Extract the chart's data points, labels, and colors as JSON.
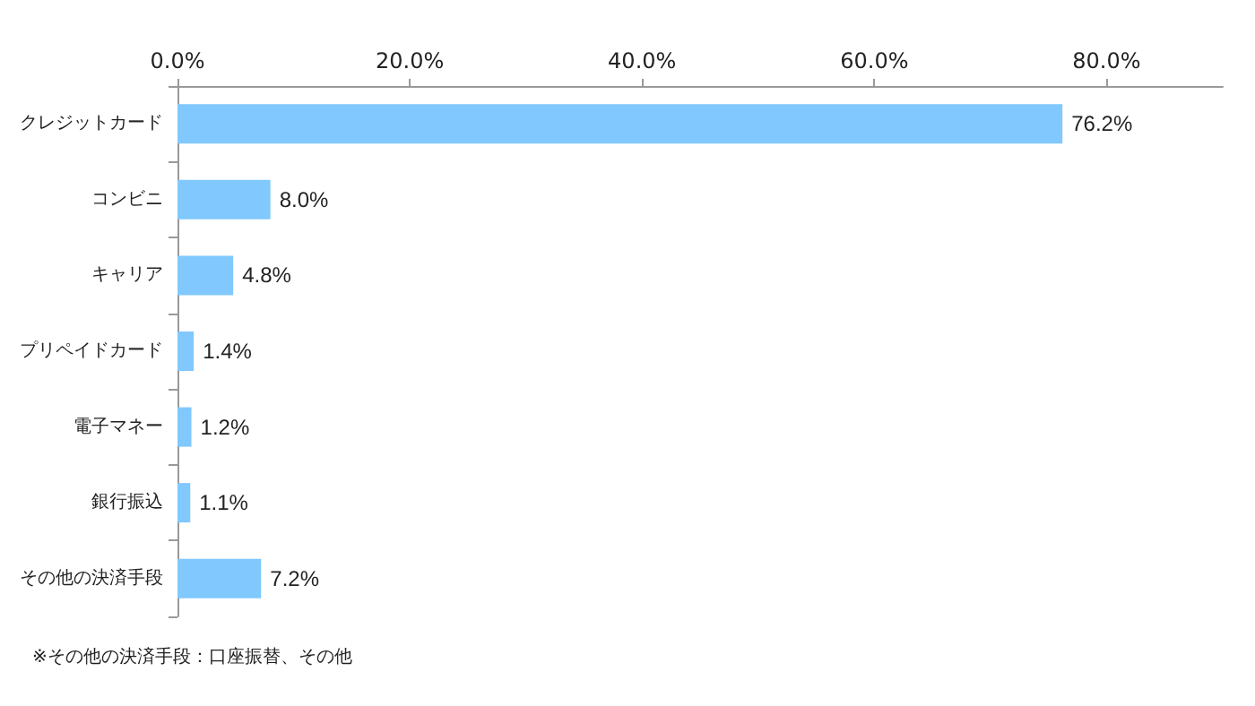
{
  "chart_data": {
    "type": "bar",
    "orientation": "horizontal",
    "categories": [
      "クレジットカード",
      "コンビニ",
      "キャリア",
      "プリペイドカード",
      "電子マネー",
      "銀行振込",
      "その他の決済手段"
    ],
    "values": [
      76.2,
      8.0,
      4.8,
      1.4,
      1.2,
      1.1,
      7.2
    ],
    "value_labels": [
      "76.2%",
      "8.0%",
      "4.8%",
      "1.4%",
      "1.2%",
      "1.1%",
      "7.2%"
    ],
    "color": "#80c8fe",
    "xlim": [
      0,
      90
    ],
    "xticks": [
      {
        "value": 0,
        "label": "0.0%"
      },
      {
        "value": 20,
        "label": "20.0%"
      },
      {
        "value": 40,
        "label": "40.0%"
      },
      {
        "value": 60,
        "label": "60.0%"
      },
      {
        "value": 80,
        "label": "80.0%"
      }
    ],
    "grid": false,
    "annotations": [
      "※その他の決済手段：口座振替、その他"
    ]
  }
}
